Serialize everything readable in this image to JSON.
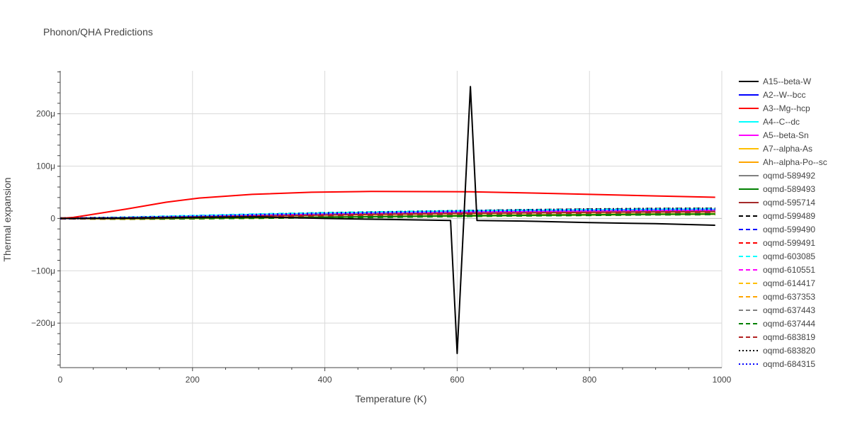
{
  "chart_data": {
    "type": "line",
    "title": "Phonon/QHA Predictions",
    "xlabel": "Temperature (K)",
    "ylabel": "Thermal expansion",
    "xlim": [
      0,
      1000
    ],
    "ylim": [
      -285,
      282
    ],
    "y_unit_suffix": "μ",
    "x_ticks": [
      0,
      200,
      400,
      600,
      800,
      1000
    ],
    "y_ticks": [
      -200,
      -100,
      0,
      100,
      200
    ],
    "y_tick_labels": [
      "−200μ",
      "−100μ",
      "0",
      "100μ",
      "200μ"
    ],
    "grid": true,
    "legend_position": "right",
    "series": [
      {
        "name": "A15--beta-W",
        "color": "#000000",
        "dash": "solid",
        "x": [
          0,
          100,
          200,
          300,
          400,
          500,
          590,
          600,
          620,
          630,
          700,
          800,
          900,
          990
        ],
        "y": [
          0,
          0.5,
          2,
          3,
          0,
          -2,
          -4,
          -258,
          252,
          -4,
          -5,
          -8,
          -10,
          -13
        ]
      },
      {
        "name": "A2--W--bcc",
        "color": "#0000ff",
        "dash": "solid",
        "x": [
          0,
          100,
          200,
          300,
          400,
          500,
          600,
          700,
          800,
          900,
          990
        ],
        "y": [
          0,
          1.5,
          4,
          7,
          10,
          12,
          14,
          15,
          16,
          17,
          17.5
        ]
      },
      {
        "name": "A3--Mg--hcp",
        "color": "#ff0000",
        "dash": "solid",
        "x": [
          0,
          20,
          50,
          100,
          160,
          210,
          290,
          380,
          470,
          620,
          700,
          800,
          900,
          990
        ],
        "y": [
          0,
          2,
          8,
          18,
          31,
          39,
          46,
          50,
          51.5,
          51,
          49,
          46,
          43,
          40.5
        ]
      },
      {
        "name": "A4--C--dc",
        "color": "#00ffff",
        "dash": "solid",
        "x": [
          0,
          100,
          200,
          300,
          400,
          500,
          600,
          700,
          800,
          900,
          990
        ],
        "y": [
          0,
          2,
          5,
          8,
          10,
          12,
          14,
          15,
          16,
          17,
          17.5
        ]
      },
      {
        "name": "A5--beta-Sn",
        "color": "#ff00ff",
        "dash": "solid",
        "x": [
          0,
          100,
          200,
          300,
          400,
          500,
          600,
          700,
          800,
          900,
          990
        ],
        "y": [
          0,
          1,
          3,
          6,
          8,
          10,
          12,
          13,
          14,
          15,
          15.5
        ]
      },
      {
        "name": "A7--alpha-As",
        "color": "#ffbf00",
        "dash": "solid",
        "x": [
          0,
          100,
          200,
          300,
          400,
          500,
          600,
          700,
          800,
          900,
          990
        ],
        "y": [
          0,
          -0.5,
          0,
          1.5,
          3,
          4.5,
          6,
          7,
          8,
          9,
          9.5
        ]
      },
      {
        "name": "Ah--alpha-Po--sc",
        "color": "#ffa500",
        "dash": "solid",
        "x": [
          0,
          100,
          200,
          300,
          400,
          500,
          600,
          700,
          800,
          900,
          990
        ],
        "y": [
          0,
          -1,
          0,
          1,
          2.5,
          3.5,
          4.5,
          5.5,
          6.5,
          7.5,
          8
        ]
      },
      {
        "name": "oqmd-589492",
        "color": "#808080",
        "dash": "solid",
        "x": [
          0,
          100,
          200,
          300,
          400,
          500,
          600,
          700,
          800,
          900,
          990
        ],
        "y": [
          0,
          1,
          3,
          5,
          7,
          9,
          10,
          11,
          12,
          13,
          13.5
        ]
      },
      {
        "name": "oqmd-589493",
        "color": "#008000",
        "dash": "solid",
        "x": [
          0,
          100,
          200,
          300,
          400,
          500,
          600,
          700,
          800,
          900,
          990
        ],
        "y": [
          0,
          0,
          0.5,
          1.5,
          2.5,
          3.5,
          5,
          6,
          7,
          8,
          8.5
        ]
      },
      {
        "name": "oqmd-595714",
        "color": "#a52a2a",
        "dash": "solid",
        "x": [
          0,
          100,
          200,
          300,
          400,
          500,
          600,
          700,
          800,
          900,
          990
        ],
        "y": [
          0,
          1,
          2.5,
          4.5,
          6.5,
          8,
          9.5,
          10.5,
          11.5,
          12.5,
          13
        ]
      },
      {
        "name": "oqmd-599489",
        "color": "#000000",
        "dash": "dash",
        "x": [
          0,
          100,
          200,
          300,
          400,
          500,
          600,
          700,
          800,
          900,
          990
        ],
        "y": [
          0,
          1.5,
          4,
          7,
          10,
          12,
          14,
          16,
          17,
          18,
          18.5
        ]
      },
      {
        "name": "oqmd-599490",
        "color": "#0000ff",
        "dash": "dash",
        "x": [
          0,
          100,
          200,
          300,
          400,
          500,
          600,
          700,
          800,
          900,
          990
        ],
        "y": [
          0,
          1.5,
          4,
          7,
          9.5,
          11.5,
          13.5,
          15,
          16,
          17,
          17.5
        ]
      },
      {
        "name": "oqmd-599491",
        "color": "#ff0000",
        "dash": "dash",
        "x": [
          0,
          100,
          200,
          300,
          400,
          500,
          600,
          700,
          800,
          900,
          990
        ],
        "y": [
          0,
          1,
          3,
          5.5,
          7.5,
          9.5,
          11,
          12.5,
          13.5,
          14.5,
          15
        ]
      },
      {
        "name": "oqmd-603085",
        "color": "#00ffff",
        "dash": "dash",
        "x": [
          0,
          100,
          200,
          300,
          400,
          500,
          600,
          700,
          800,
          900,
          990
        ],
        "y": [
          0,
          2,
          5,
          8,
          10.5,
          12.5,
          14,
          15.5,
          16.5,
          17.5,
          18
        ]
      },
      {
        "name": "oqmd-610551",
        "color": "#ff00ff",
        "dash": "dash",
        "x": [
          0,
          100,
          200,
          300,
          400,
          500,
          600,
          700,
          800,
          900,
          990
        ],
        "y": [
          0,
          1,
          3,
          5.5,
          7.5,
          9.5,
          11,
          12.5,
          13.5,
          14.5,
          15
        ]
      },
      {
        "name": "oqmd-614417",
        "color": "#ffbf00",
        "dash": "dash",
        "x": [
          0,
          100,
          200,
          300,
          400,
          500,
          600,
          700,
          800,
          900,
          990
        ],
        "y": [
          0,
          -0.5,
          0.5,
          2,
          3.5,
          5,
          6,
          7,
          8,
          9,
          9.5
        ]
      },
      {
        "name": "oqmd-637353",
        "color": "#ffa500",
        "dash": "dash",
        "x": [
          0,
          100,
          200,
          300,
          400,
          500,
          600,
          700,
          800,
          900,
          990
        ],
        "y": [
          0,
          -1,
          0,
          1,
          2.5,
          3.5,
          4.5,
          5.5,
          6.5,
          7.5,
          8
        ]
      },
      {
        "name": "oqmd-637443",
        "color": "#808080",
        "dash": "dash",
        "x": [
          0,
          100,
          200,
          300,
          400,
          500,
          600,
          700,
          800,
          900,
          990
        ],
        "y": [
          0,
          0.5,
          2,
          3.5,
          5,
          6.5,
          7.5,
          8.5,
          9.5,
          10.5,
          11
        ]
      },
      {
        "name": "oqmd-637444",
        "color": "#008000",
        "dash": "dash",
        "x": [
          0,
          100,
          200,
          300,
          400,
          500,
          600,
          700,
          800,
          900,
          990
        ],
        "y": [
          0,
          -0.5,
          0,
          1,
          2,
          3,
          4.5,
          5.5,
          6.5,
          7.5,
          8
        ]
      },
      {
        "name": "oqmd-683819",
        "color": "#b22222",
        "dash": "dash",
        "x": [
          0,
          100,
          200,
          300,
          400,
          500,
          600,
          700,
          800,
          900,
          990
        ],
        "y": [
          0,
          0.5,
          2,
          4,
          6,
          7.5,
          9,
          10,
          11,
          12,
          12.5
        ]
      },
      {
        "name": "oqmd-683820",
        "color": "#000000",
        "dash": "dot",
        "x": [
          0,
          100,
          200,
          300,
          400,
          500,
          600,
          700,
          800,
          900,
          990
        ],
        "y": [
          0,
          1.5,
          4,
          7,
          10,
          12,
          14,
          16,
          17.5,
          18.5,
          19
        ]
      },
      {
        "name": "oqmd-684315",
        "color": "#0000ff",
        "dash": "dot",
        "x": [
          0,
          100,
          200,
          300,
          400,
          500,
          600,
          700,
          800,
          900,
          990
        ],
        "y": [
          0,
          1.5,
          4,
          7,
          9.5,
          11.5,
          13.5,
          15,
          16,
          17,
          17.5
        ]
      }
    ]
  }
}
